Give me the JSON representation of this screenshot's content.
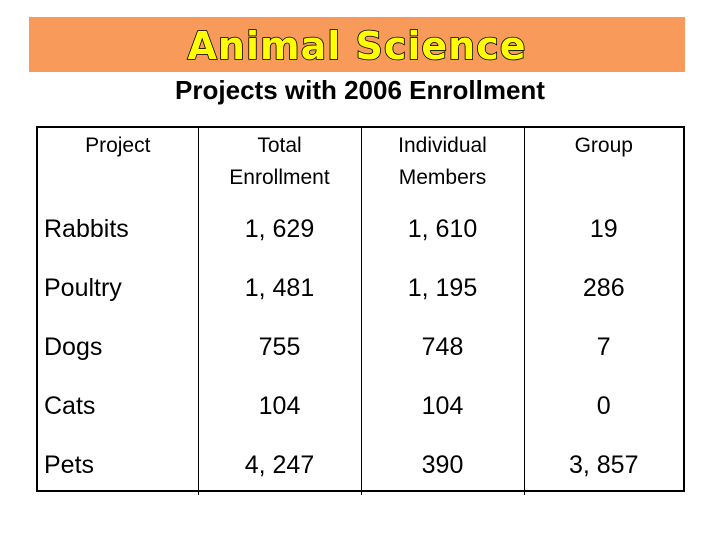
{
  "banner": {
    "title": "Animal Science",
    "background_color": "#f79a5a",
    "text_color": "#ffff00"
  },
  "subtitle": "Projects with 2006 Enrollment",
  "table": {
    "headers": [
      {
        "line1": "Project",
        "line2": ""
      },
      {
        "line1": "Total",
        "line2": "Enrollment"
      },
      {
        "line1": "Individual",
        "line2": "Members"
      },
      {
        "line1": "Group",
        "line2": ""
      }
    ],
    "rows": [
      {
        "project": "Rabbits",
        "total": "1, 629",
        "individual": "1, 610",
        "group": "19"
      },
      {
        "project": "Poultry",
        "total": "1, 481",
        "individual": "1, 195",
        "group": "286"
      },
      {
        "project": "Dogs",
        "total": "755",
        "individual": "748",
        "group": "7"
      },
      {
        "project": "Cats",
        "total": "104",
        "individual": "104",
        "group": "0"
      },
      {
        "project": "Pets",
        "total": "4, 247",
        "individual": "390",
        "group": "3, 857"
      }
    ]
  }
}
